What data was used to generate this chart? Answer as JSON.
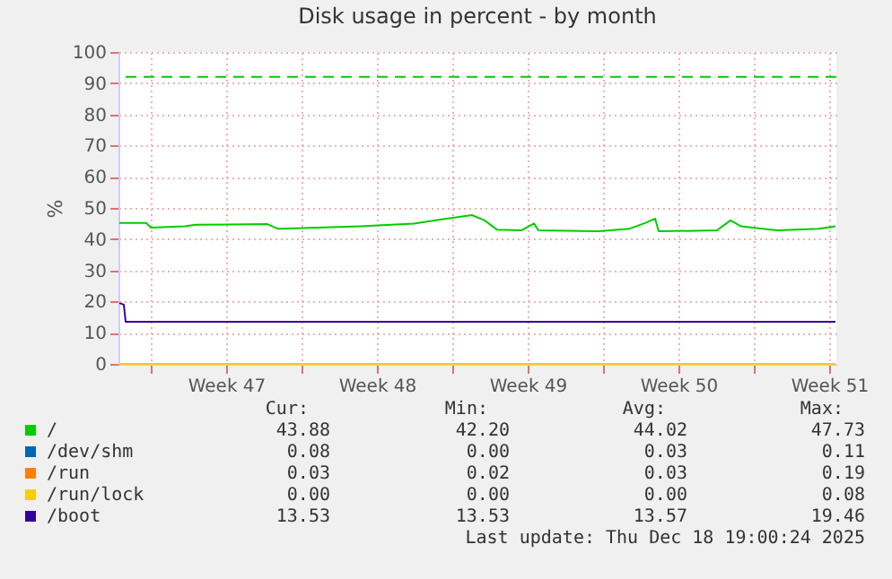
{
  "chart_data": {
    "type": "line",
    "title": "Disk usage in percent - by month",
    "ylabel": "%",
    "xlim": [
      "2025-11-15T12:00",
      "2025-12-18T20:00"
    ],
    "ylim": [
      0,
      100
    ],
    "yticks": [
      0,
      10,
      20,
      30,
      40,
      50,
      60,
      70,
      80,
      90,
      100
    ],
    "xticks": [
      {
        "value": "2025-11-17",
        "label": null
      },
      {
        "value": "2025-11-20T12:00",
        "label": "Week 47"
      },
      {
        "value": "2025-11-24",
        "label": null
      },
      {
        "value": "2025-11-27T12:00",
        "label": "Week 48"
      },
      {
        "value": "2025-12-01",
        "label": null
      },
      {
        "value": "2025-12-04T12:00",
        "label": "Week 49"
      },
      {
        "value": "2025-12-08",
        "label": null
      },
      {
        "value": "2025-12-11T12:00",
        "label": "Week 50"
      },
      {
        "value": "2025-12-15",
        "label": null
      },
      {
        "value": "2025-12-18T12:00",
        "label": "Week 51"
      }
    ],
    "grid": true,
    "legend": "bottom",
    "line_style": "solid",
    "marker": "none",
    "series": [
      {
        "name": "/",
        "color": "#00cc00",
        "x": [
          "2025-11-15T13:00",
          "2025-11-16T19:00",
          "2025-11-17T00:00",
          "2025-11-18T14:00",
          "2025-11-19T02:00",
          "2025-11-22T10:00",
          "2025-11-22T22:00",
          "2025-11-26T17:00",
          "2025-11-29T05:00",
          "2025-11-30T14:00",
          "2025-12-01T22:00",
          "2025-12-02T12:00",
          "2025-12-03T02:00",
          "2025-12-04T05:00",
          "2025-12-04T19:00",
          "2025-12-05T00:00",
          "2025-12-07T19:00",
          "2025-12-09T05:00",
          "2025-12-10T00:00",
          "2025-12-10T10:00",
          "2025-12-10T14:00",
          "2025-12-13T07:00",
          "2025-12-13T22:00",
          "2025-12-14T10:00",
          "2025-12-16T02:00",
          "2025-12-18T00:00",
          "2025-12-18T19:00"
        ],
        "values": [
          45.2,
          45.2,
          43.7,
          44.1,
          44.6,
          44.8,
          43.3,
          44.1,
          45.0,
          46.4,
          47.7,
          46.0,
          43.0,
          42.8,
          45.0,
          42.8,
          42.5,
          43.3,
          45.3,
          46.6,
          42.5,
          42.8,
          46.0,
          44.1,
          42.8,
          43.3,
          44.1
        ]
      },
      {
        "name": "/dev/shm",
        "color": "#0066b3"
      },
      {
        "name": "/run",
        "color": "#ff8000"
      },
      {
        "name": "/run/lock",
        "color": "#ffcc00",
        "x": [
          "2025-11-15T13:00",
          "2025-12-18T19:00"
        ],
        "values": [
          0.0,
          0.0
        ]
      },
      {
        "name": "/boot",
        "color": "#330099",
        "x": [
          "2025-11-15T13:00",
          "2025-11-15T18:00",
          "2025-11-15T20:00",
          "2025-12-18T19:00"
        ],
        "values": [
          19.5,
          19.0,
          13.5,
          13.5
        ]
      }
    ],
    "ref_lines": [
      {
        "axis": "y",
        "value": 92,
        "label": null,
        "color": "#00cc00",
        "line_style": "dashed"
      }
    ],
    "annotations": [
      "Cur:",
      "Min:",
      "Avg:",
      "Max:",
      "43.88",
      "42.20",
      "44.02",
      "47.73",
      "0.08",
      "0.00",
      "0.03",
      "0.11",
      "0.03",
      "0.02",
      "0.03",
      "0.19",
      "0.00",
      "0.00",
      "0.00",
      "0.08",
      "13.53",
      "13.53",
      "13.57",
      "19.46",
      "Last update: Thu Dec 18 19:00:24 2025"
    ]
  }
}
